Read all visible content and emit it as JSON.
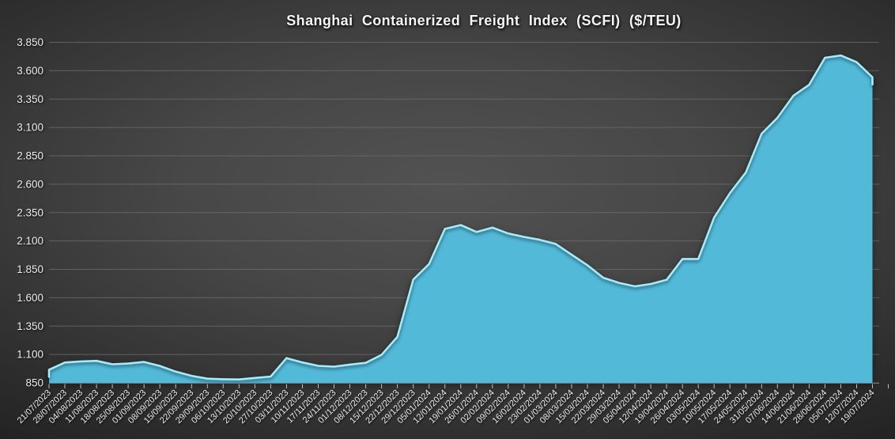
{
  "chart_data": {
    "type": "area",
    "title": "Shanghai Containerized Freight Index (SCFI) ($/TEU)",
    "xlabel": "",
    "ylabel": "",
    "ylim": [
      850,
      3850
    ],
    "ytick_step": 250,
    "ytick_labels": [
      "850",
      "1.100",
      "1.350",
      "1.600",
      "1.850",
      "2.100",
      "2.350",
      "2.600",
      "2.850",
      "3.100",
      "3.350",
      "3.600",
      "3.850"
    ],
    "grid": "horizontal",
    "legend_position": "none",
    "x_label_rotation_deg": -45,
    "categories": [
      "21/07/2023",
      "28/07/2023",
      "04/08/2023",
      "11/08/2023",
      "18/08/2023",
      "25/08/2023",
      "01/09/2023",
      "08/09/2023",
      "15/09/2023",
      "22/09/2023",
      "29/09/2023",
      "06/10/2023",
      "13/10/2023",
      "20/10/2023",
      "27/10/2023",
      "03/11/2023",
      "10/11/2023",
      "17/11/2023",
      "24/11/2023",
      "01/12/2023",
      "08/12/2023",
      "15/12/2023",
      "22/12/2023",
      "29/12/2023",
      "05/01/2024",
      "12/01/2024",
      "19/01/2024",
      "26/01/2024",
      "02/02/2024",
      "09/02/2024",
      "16/02/2024",
      "23/02/2024",
      "01/03/2024",
      "08/03/2024",
      "15/03/2024",
      "22/03/2024",
      "29/03/2024",
      "05/04/2024",
      "12/04/2024",
      "19/04/2024",
      "26/04/2024",
      "03/05/2024",
      "10/05/2024",
      "17/05/2024",
      "24/05/2024",
      "31/05/2024",
      "07/06/2024",
      "14/06/2024",
      "21/06/2024",
      "28/06/2024",
      "05/07/2024",
      "12/07/2024",
      "19/07/2024"
    ],
    "values": [
      966,
      1029,
      1039,
      1044,
      1014,
      1020,
      1034,
      999,
      949,
      912,
      887,
      882,
      880,
      893,
      906,
      1068,
      1030,
      1000,
      993,
      1011,
      1026,
      1097,
      1255,
      1760,
      1897,
      2206,
      2240,
      2179,
      2218,
      2166,
      2136,
      2110,
      2074,
      1979,
      1886,
      1776,
      1731,
      1700,
      1721,
      1757,
      1941,
      1941,
      2306,
      2521,
      2703,
      3045,
      3185,
      3379,
      3476,
      3714,
      3734,
      3675,
      3542
    ],
    "colors": {
      "area_fill": "#52b9d9",
      "area_edge_highlight": "#a6ebf7",
      "background_center": "#4f4f4f",
      "background_edge": "#232323",
      "gridline": "#6c6c6c",
      "axis_line": "#8f8f8f",
      "tick": "#bdbdbd",
      "axis_text": "#ececec",
      "title_text": "#f5f5f5"
    }
  }
}
